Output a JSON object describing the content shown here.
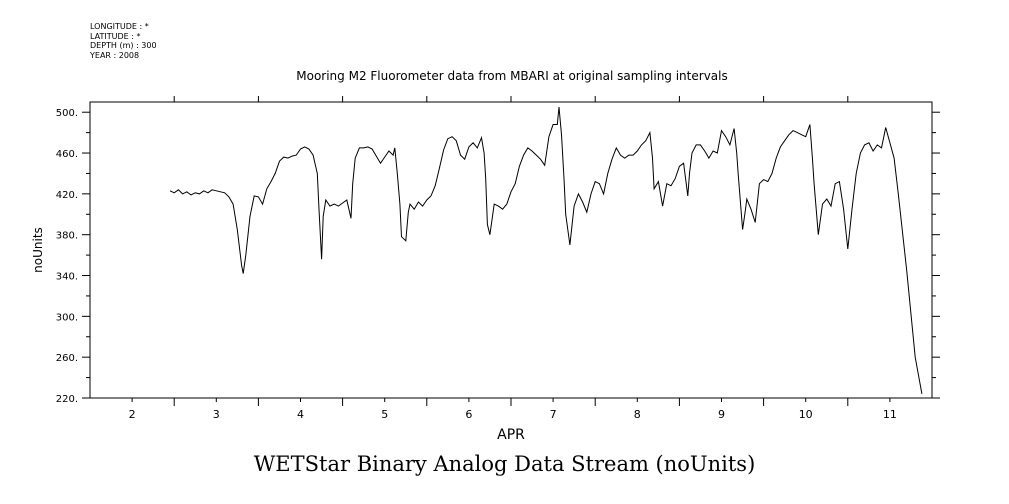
{
  "meta": {
    "longitude": "LONGITUDE : *",
    "latitude": "LATITUDE : *",
    "depth": "DEPTH (m) : 300",
    "year": "YEAR : 2008"
  },
  "caption": "WETStar Binary Analog Data Stream (noUnits)",
  "chart_data": {
    "type": "line",
    "title": "Mooring M2 Fluorometer data from MBARI at original sampling intervals",
    "xlabel": "APR",
    "ylabel": "noUnits",
    "xlim": [
      1.5,
      11.5
    ],
    "ylim": [
      220,
      510
    ],
    "x_ticks": [
      2,
      3,
      4,
      5,
      6,
      7,
      8,
      9,
      10,
      11
    ],
    "x_tick_labels": [
      "2",
      "3",
      "4",
      "5",
      "6",
      "7",
      "8",
      "9",
      "10",
      "11"
    ],
    "y_ticks": [
      220,
      260,
      300,
      340,
      380,
      420,
      460,
      500
    ],
    "y_tick_labels": [
      "220.",
      "260.",
      "300.",
      "340.",
      "380.",
      "420.",
      "460.",
      "500."
    ],
    "grid": false,
    "line_color": "#000000",
    "series": [
      {
        "points": [
          [
            2.45,
            423
          ],
          [
            2.5,
            421
          ],
          [
            2.55,
            424
          ],
          [
            2.6,
            420
          ],
          [
            2.65,
            422
          ],
          [
            2.7,
            419
          ],
          [
            2.75,
            421
          ],
          [
            2.8,
            420
          ],
          [
            2.85,
            423
          ],
          [
            2.9,
            421
          ],
          [
            2.95,
            424
          ],
          [
            3.0,
            423
          ],
          [
            3.05,
            422
          ],
          [
            3.1,
            421
          ],
          [
            3.15,
            417
          ],
          [
            3.2,
            410
          ],
          [
            3.25,
            385
          ],
          [
            3.3,
            350
          ],
          [
            3.32,
            342
          ],
          [
            3.35,
            360
          ],
          [
            3.4,
            398
          ],
          [
            3.45,
            418
          ],
          [
            3.5,
            417
          ],
          [
            3.55,
            410
          ],
          [
            3.6,
            425
          ],
          [
            3.65,
            432
          ],
          [
            3.7,
            440
          ],
          [
            3.75,
            452
          ],
          [
            3.8,
            456
          ],
          [
            3.85,
            455
          ],
          [
            3.9,
            457
          ],
          [
            3.95,
            458
          ],
          [
            4.0,
            464
          ],
          [
            4.05,
            466
          ],
          [
            4.1,
            464
          ],
          [
            4.15,
            458
          ],
          [
            4.2,
            440
          ],
          [
            4.22,
            405
          ],
          [
            4.25,
            356
          ],
          [
            4.27,
            398
          ],
          [
            4.3,
            414
          ],
          [
            4.35,
            408
          ],
          [
            4.4,
            410
          ],
          [
            4.45,
            408
          ],
          [
            4.5,
            411
          ],
          [
            4.55,
            414
          ],
          [
            4.6,
            396
          ],
          [
            4.62,
            430
          ],
          [
            4.65,
            455
          ],
          [
            4.7,
            465
          ],
          [
            4.75,
            465
          ],
          [
            4.8,
            466
          ],
          [
            4.85,
            464
          ],
          [
            4.9,
            457
          ],
          [
            4.95,
            450
          ],
          [
            5.0,
            456
          ],
          [
            5.05,
            462
          ],
          [
            5.1,
            458
          ],
          [
            5.12,
            465
          ],
          [
            5.15,
            440
          ],
          [
            5.18,
            410
          ],
          [
            5.2,
            378
          ],
          [
            5.25,
            374
          ],
          [
            5.28,
            402
          ],
          [
            5.3,
            410
          ],
          [
            5.35,
            405
          ],
          [
            5.4,
            412
          ],
          [
            5.45,
            408
          ],
          [
            5.5,
            414
          ],
          [
            5.55,
            418
          ],
          [
            5.6,
            428
          ],
          [
            5.65,
            445
          ],
          [
            5.7,
            463
          ],
          [
            5.75,
            474
          ],
          [
            5.8,
            476
          ],
          [
            5.85,
            472
          ],
          [
            5.9,
            458
          ],
          [
            5.95,
            454
          ],
          [
            6.0,
            466
          ],
          [
            6.05,
            470
          ],
          [
            6.1,
            465
          ],
          [
            6.15,
            475
          ],
          [
            6.18,
            460
          ],
          [
            6.2,
            435
          ],
          [
            6.22,
            390
          ],
          [
            6.25,
            380
          ],
          [
            6.28,
            398
          ],
          [
            6.3,
            410
          ],
          [
            6.35,
            408
          ],
          [
            6.4,
            405
          ],
          [
            6.45,
            410
          ],
          [
            6.5,
            422
          ],
          [
            6.55,
            430
          ],
          [
            6.6,
            447
          ],
          [
            6.65,
            458
          ],
          [
            6.7,
            465
          ],
          [
            6.75,
            462
          ],
          [
            6.8,
            458
          ],
          [
            6.85,
            454
          ],
          [
            6.9,
            448
          ],
          [
            6.95,
            476
          ],
          [
            7.0,
            488
          ],
          [
            7.05,
            488
          ],
          [
            7.07,
            505
          ],
          [
            7.1,
            478
          ],
          [
            7.13,
            435
          ],
          [
            7.15,
            400
          ],
          [
            7.2,
            370
          ],
          [
            7.25,
            408
          ],
          [
            7.3,
            420
          ],
          [
            7.35,
            412
          ],
          [
            7.4,
            402
          ],
          [
            7.45,
            420
          ],
          [
            7.5,
            432
          ],
          [
            7.55,
            430
          ],
          [
            7.6,
            420
          ],
          [
            7.65,
            440
          ],
          [
            7.7,
            454
          ],
          [
            7.75,
            465
          ],
          [
            7.8,
            458
          ],
          [
            7.85,
            455
          ],
          [
            7.9,
            458
          ],
          [
            7.95,
            458
          ],
          [
            8.0,
            462
          ],
          [
            8.05,
            468
          ],
          [
            8.1,
            472
          ],
          [
            8.15,
            480
          ],
          [
            8.18,
            455
          ],
          [
            8.2,
            425
          ],
          [
            8.25,
            432
          ],
          [
            8.3,
            408
          ],
          [
            8.35,
            430
          ],
          [
            8.4,
            428
          ],
          [
            8.45,
            435
          ],
          [
            8.5,
            447
          ],
          [
            8.55,
            450
          ],
          [
            8.6,
            418
          ],
          [
            8.62,
            440
          ],
          [
            8.65,
            460
          ],
          [
            8.7,
            468
          ],
          [
            8.75,
            468
          ],
          [
            8.8,
            462
          ],
          [
            8.85,
            455
          ],
          [
            8.9,
            462
          ],
          [
            8.95,
            460
          ],
          [
            9.0,
            482
          ],
          [
            9.05,
            476
          ],
          [
            9.1,
            468
          ],
          [
            9.15,
            484
          ],
          [
            9.18,
            460
          ],
          [
            9.2,
            438
          ],
          [
            9.25,
            385
          ],
          [
            9.28,
            402
          ],
          [
            9.3,
            415
          ],
          [
            9.35,
            405
          ],
          [
            9.4,
            392
          ],
          [
            9.45,
            430
          ],
          [
            9.5,
            434
          ],
          [
            9.55,
            432
          ],
          [
            9.6,
            440
          ],
          [
            9.65,
            455
          ],
          [
            9.7,
            466
          ],
          [
            9.75,
            472
          ],
          [
            9.8,
            478
          ],
          [
            9.85,
            482
          ],
          [
            9.9,
            480
          ],
          [
            9.95,
            478
          ],
          [
            10.0,
            476
          ],
          [
            10.05,
            488
          ],
          [
            10.08,
            455
          ],
          [
            10.1,
            430
          ],
          [
            10.15,
            380
          ],
          [
            10.2,
            410
          ],
          [
            10.25,
            415
          ],
          [
            10.3,
            408
          ],
          [
            10.35,
            430
          ],
          [
            10.4,
            432
          ],
          [
            10.45,
            405
          ],
          [
            10.5,
            366
          ],
          [
            10.55,
            405
          ],
          [
            10.6,
            440
          ],
          [
            10.65,
            460
          ],
          [
            10.7,
            468
          ],
          [
            10.75,
            470
          ],
          [
            10.8,
            462
          ],
          [
            10.85,
            468
          ],
          [
            10.9,
            465
          ],
          [
            10.95,
            485
          ],
          [
            11.0,
            470
          ],
          [
            11.05,
            455
          ],
          [
            11.1,
            420
          ],
          [
            11.2,
            345
          ],
          [
            11.3,
            260
          ],
          [
            11.38,
            224
          ]
        ]
      }
    ]
  }
}
